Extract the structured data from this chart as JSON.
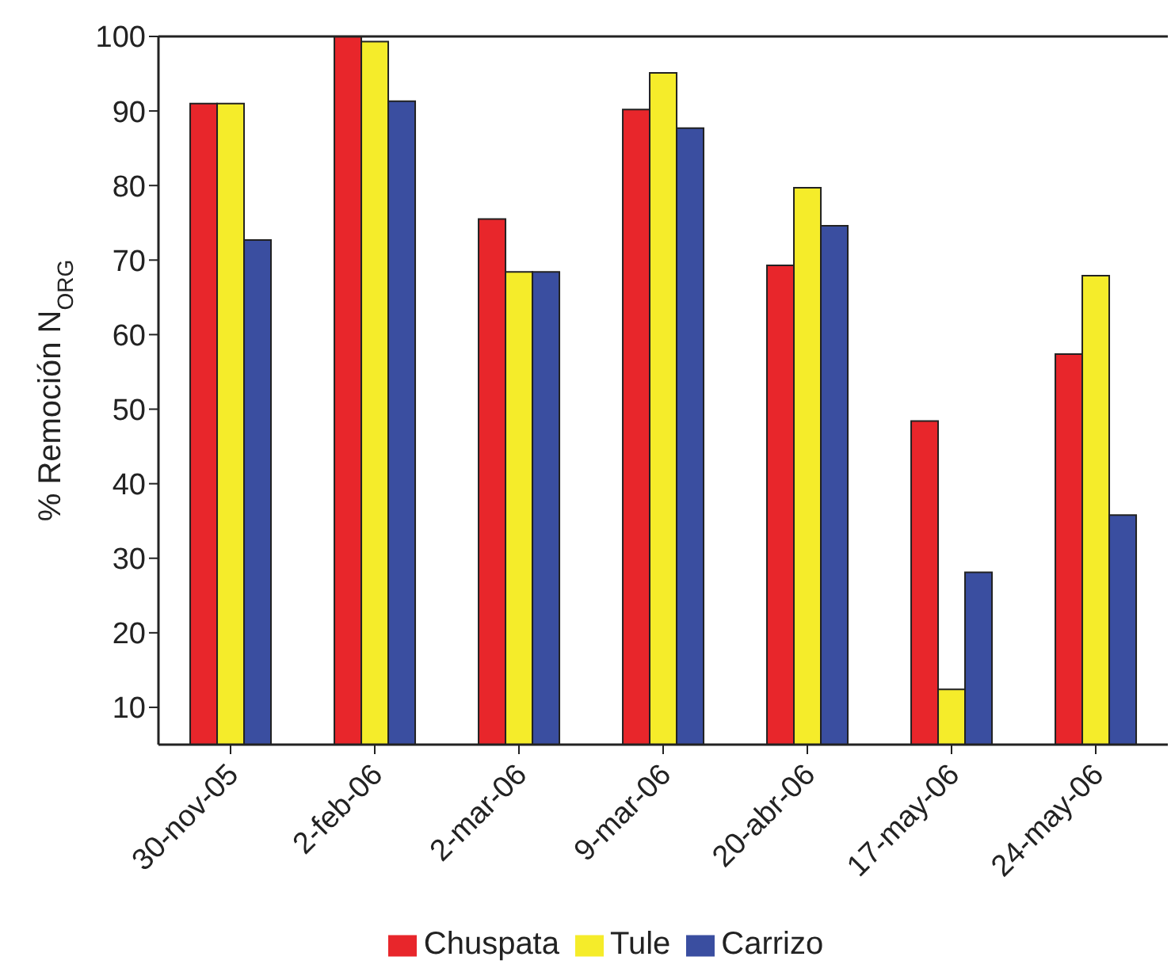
{
  "chart_data": {
    "type": "bar",
    "ylabel": "% Remoción N$_{ORG}$",
    "categories": [
      "30-nov-05",
      "2-feb-06",
      "2-mar-06",
      "9-mar-06",
      "20-abr-06",
      "17-may-06",
      "24-may-06"
    ],
    "series": [
      {
        "name": "Chuspata",
        "color": "#e8262b",
        "values": [
          91.0,
          100,
          75.5,
          90.2,
          69.3,
          48.4,
          57.4
        ]
      },
      {
        "name": "Tule",
        "color": "#f5ec2a",
        "values": [
          91.0,
          99.3,
          68.4,
          95.1,
          79.7,
          12.4,
          67.9
        ]
      },
      {
        "name": "Carrizo",
        "color": "#3a4ea0",
        "values": [
          72.7,
          91.3,
          68.4,
          87.7,
          74.6,
          28.1,
          35.8
        ]
      }
    ],
    "ylim": [
      5,
      100
    ],
    "yticks": [
      10,
      20,
      30,
      40,
      50,
      60,
      70,
      80,
      90,
      100
    ],
    "grid": false,
    "legend": "bottom"
  }
}
